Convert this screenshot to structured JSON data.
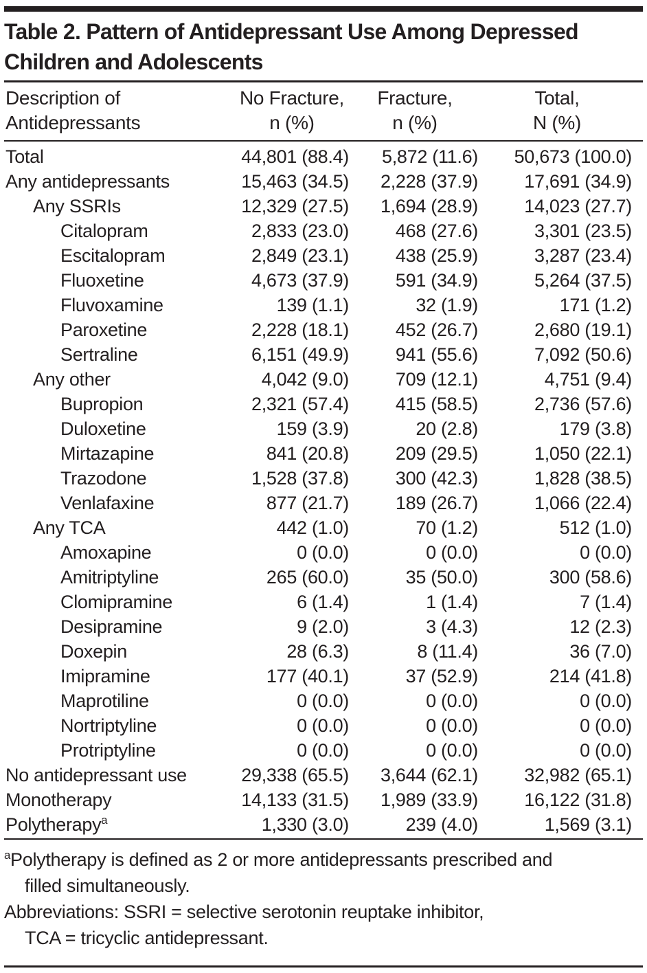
{
  "colors": {
    "text": "#231f20",
    "rule": "#231f20",
    "background": "#ffffff"
  },
  "table": {
    "title_lines": [
      "Table 2. Pattern of Antidepressant Use Among Depressed",
      "Children and Adolescents"
    ],
    "header": {
      "col1": {
        "line1": "Description of",
        "line2": "Antidepressants"
      },
      "col2": {
        "line1": "No Fracture,",
        "line2": "n (%)"
      },
      "col3": {
        "line1": "Fracture,",
        "line2": "n (%)"
      },
      "col4": {
        "line1": "Total,",
        "line2": "N (%)"
      }
    },
    "rows": [
      {
        "label": "Total",
        "indent": 0,
        "no_fracture": "44,801 (88.4)",
        "fracture": "5,872 (11.6)",
        "total": "50,673 (100.0)"
      },
      {
        "label": "Any antidepressants",
        "indent": 0,
        "no_fracture": "15,463 (34.5)",
        "fracture": "2,228 (37.9)",
        "total": "17,691 (34.9)"
      },
      {
        "label": "Any SSRIs",
        "indent": 1,
        "no_fracture": "12,329 (27.5)",
        "fracture": "1,694 (28.9)",
        "total": "14,023 (27.7)"
      },
      {
        "label": "Citalopram",
        "indent": 2,
        "no_fracture": "2,833 (23.0)",
        "fracture": "468 (27.6)",
        "total": "3,301 (23.5)"
      },
      {
        "label": "Escitalopram",
        "indent": 2,
        "no_fracture": "2,849 (23.1)",
        "fracture": "438 (25.9)",
        "total": "3,287 (23.4)"
      },
      {
        "label": "Fluoxetine",
        "indent": 2,
        "no_fracture": "4,673 (37.9)",
        "fracture": "591 (34.9)",
        "total": "5,264 (37.5)"
      },
      {
        "label": "Fluvoxamine",
        "indent": 2,
        "no_fracture": "139 (1.1)",
        "fracture": "32 (1.9)",
        "total": "171 (1.2)"
      },
      {
        "label": "Paroxetine",
        "indent": 2,
        "no_fracture": "2,228 (18.1)",
        "fracture": "452 (26.7)",
        "total": "2,680 (19.1)"
      },
      {
        "label": "Sertraline",
        "indent": 2,
        "no_fracture": "6,151 (49.9)",
        "fracture": "941 (55.6)",
        "total": "7,092 (50.6)"
      },
      {
        "label": "Any other",
        "indent": 1,
        "no_fracture": "4,042 (9.0)",
        "fracture": "709 (12.1)",
        "total": "4,751 (9.4)"
      },
      {
        "label": "Bupropion",
        "indent": 2,
        "no_fracture": "2,321 (57.4)",
        "fracture": "415 (58.5)",
        "total": "2,736 (57.6)"
      },
      {
        "label": "Duloxetine",
        "indent": 2,
        "no_fracture": "159 (3.9)",
        "fracture": "20 (2.8)",
        "total": "179 (3.8)"
      },
      {
        "label": "Mirtazapine",
        "indent": 2,
        "no_fracture": "841 (20.8)",
        "fracture": "209 (29.5)",
        "total": "1,050 (22.1)"
      },
      {
        "label": "Trazodone",
        "indent": 2,
        "no_fracture": "1,528 (37.8)",
        "fracture": "300 (42.3)",
        "total": "1,828 (38.5)"
      },
      {
        "label": "Venlafaxine",
        "indent": 2,
        "no_fracture": "877 (21.7)",
        "fracture": "189 (26.7)",
        "total": "1,066 (22.4)"
      },
      {
        "label": "Any TCA",
        "indent": 1,
        "no_fracture": "442 (1.0)",
        "fracture": "70 (1.2)",
        "total": "512 (1.0)"
      },
      {
        "label": "Amoxapine",
        "indent": 2,
        "no_fracture": "0 (0.0)",
        "fracture": "0 (0.0)",
        "total": "0 (0.0)"
      },
      {
        "label": "Amitriptyline",
        "indent": 2,
        "no_fracture": "265 (60.0)",
        "fracture": "35 (50.0)",
        "total": "300 (58.6)"
      },
      {
        "label": "Clomipramine",
        "indent": 2,
        "no_fracture": "6 (1.4)",
        "fracture": "1 (1.4)",
        "total": "7 (1.4)"
      },
      {
        "label": "Desipramine",
        "indent": 2,
        "no_fracture": "9 (2.0)",
        "fracture": "3 (4.3)",
        "total": "12 (2.3)"
      },
      {
        "label": "Doxepin",
        "indent": 2,
        "no_fracture": "28 (6.3)",
        "fracture": "8 (11.4)",
        "total": "36 (7.0)"
      },
      {
        "label": "Imipramine",
        "indent": 2,
        "no_fracture": "177 (40.1)",
        "fracture": "37 (52.9)",
        "total": "214 (41.8)"
      },
      {
        "label": "Maprotiline",
        "indent": 2,
        "no_fracture": "0 (0.0)",
        "fracture": "0 (0.0)",
        "total": "0 (0.0)"
      },
      {
        "label": "Nortriptyline",
        "indent": 2,
        "no_fracture": "0 (0.0)",
        "fracture": "0 (0.0)",
        "total": "0 (0.0)"
      },
      {
        "label": "Protriptyline",
        "indent": 2,
        "no_fracture": "0 (0.0)",
        "fracture": "0 (0.0)",
        "total": "0 (0.0)"
      },
      {
        "label": "No antidepressant use",
        "indent": 0,
        "no_fracture": "29,338 (65.5)",
        "fracture": "3,644 (62.1)",
        "total": "32,982 (65.1)"
      },
      {
        "label": "Monotherapy",
        "indent": 0,
        "no_fracture": "14,133 (31.5)",
        "fracture": "1,989 (33.9)",
        "total": "16,122 (31.8)"
      },
      {
        "label": "Polytherapy",
        "sup": "a",
        "indent": 0,
        "no_fracture": "1,330 (3.0)",
        "fracture": "239 (4.0)",
        "total": "1,569 (3.1)"
      }
    ],
    "footnotes": [
      {
        "sup": "a",
        "lines": [
          "Polytherapy is defined as 2 or more antidepressants prescribed and",
          "filled simultaneously."
        ]
      },
      {
        "sup": "",
        "lines": [
          "Abbreviations: SSRI = selective serotonin reuptake inhibitor,",
          "TCA = tricyclic antidepressant."
        ]
      }
    ]
  }
}
